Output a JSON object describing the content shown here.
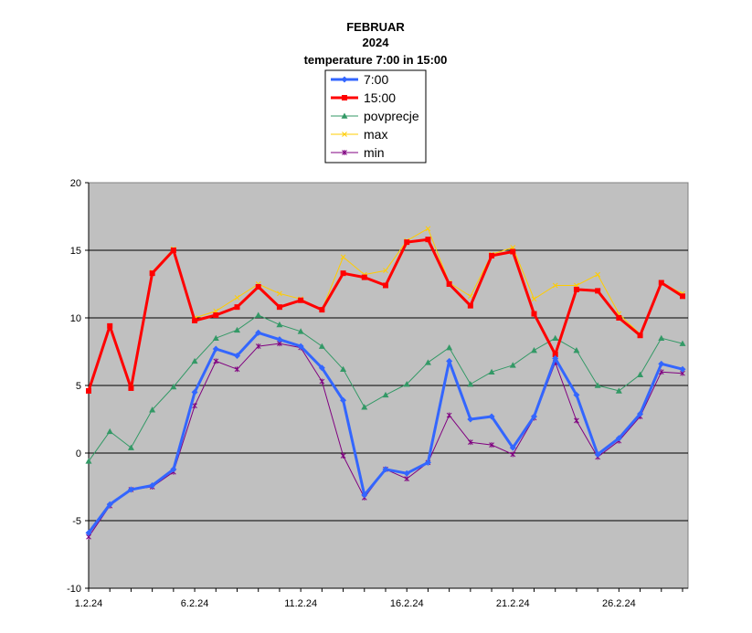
{
  "chart_data": {
    "type": "line",
    "title": [
      "FEBRUAR",
      "2024",
      "temperature 7:00 in 15:00"
    ],
    "ylim": [
      -10,
      20
    ],
    "y_ticks": [
      20,
      15,
      10,
      5,
      0,
      -5,
      -10
    ],
    "x_tick_labels": [
      {
        "day": 1,
        "label": "1.2.24"
      },
      {
        "day": 6,
        "label": "6.2.24"
      },
      {
        "day": 11,
        "label": "11.2.24"
      },
      {
        "day": 16,
        "label": "16.2.24"
      },
      {
        "day": 21,
        "label": "21.2.24"
      },
      {
        "day": 26,
        "label": "26.2.24"
      }
    ],
    "days": [
      1,
      2,
      3,
      4,
      5,
      6,
      7,
      8,
      9,
      10,
      11,
      12,
      13,
      14,
      15,
      16,
      17,
      18,
      19,
      20,
      21,
      22,
      23,
      24,
      25,
      26,
      27,
      28,
      29
    ],
    "grid": "horizontal",
    "background": "#c0c0c0",
    "legend_position": "top-center",
    "series": [
      {
        "name": "7:00",
        "color": "#3366ff",
        "values": [
          -5.9,
          -3.8,
          -2.7,
          -2.4,
          -1.2,
          4.5,
          7.7,
          7.2,
          8.9,
          8.4,
          7.9,
          6.3,
          3.9,
          -3.1,
          -1.2,
          -1.5,
          -0.7,
          6.8,
          2.5,
          2.7,
          0.4,
          2.7,
          7.0,
          4.3,
          -0.1,
          1.1,
          2.9,
          6.6,
          6.2
        ]
      },
      {
        "name": "15:00",
        "color": "#ff0000",
        "values": [
          4.6,
          9.4,
          4.8,
          13.3,
          15.0,
          9.8,
          10.2,
          10.8,
          12.3,
          10.8,
          11.3,
          10.6,
          13.3,
          13.0,
          12.4,
          15.6,
          15.8,
          12.5,
          10.9,
          14.6,
          14.9,
          10.3,
          7.3,
          12.1,
          12.0,
          10.0,
          8.7,
          12.6,
          11.6
        ]
      },
      {
        "name": "povprecje",
        "color": "#339966",
        "values": [
          -0.6,
          1.6,
          0.4,
          3.2,
          4.9,
          6.8,
          8.5,
          9.1,
          10.2,
          9.5,
          9.0,
          7.9,
          6.2,
          3.4,
          4.3,
          5.1,
          6.7,
          7.8,
          5.1,
          6.0,
          6.5,
          7.6,
          8.5,
          7.6,
          5.0,
          4.6,
          5.8,
          8.5,
          8.1
        ]
      },
      {
        "name": "max",
        "color": "#ffcc00",
        "values": [
          4.6,
          9.4,
          4.9,
          13.4,
          15.1,
          10.0,
          10.5,
          11.5,
          12.5,
          11.8,
          11.4,
          10.6,
          14.5,
          13.2,
          13.5,
          15.7,
          16.6,
          12.6,
          11.6,
          14.7,
          15.2,
          11.4,
          12.4,
          12.4,
          13.2,
          10.3,
          8.8,
          12.6,
          11.8
        ]
      },
      {
        "name": "min",
        "color": "#800080",
        "values": [
          -6.2,
          -3.9,
          -2.7,
          -2.5,
          -1.4,
          3.5,
          6.8,
          6.2,
          7.9,
          8.1,
          7.8,
          5.3,
          -0.2,
          -3.3,
          -1.2,
          -1.9,
          -0.7,
          2.8,
          0.8,
          0.6,
          -0.1,
          2.6,
          6.7,
          2.4,
          -0.3,
          0.9,
          2.7,
          6.0,
          5.9
        ]
      }
    ]
  }
}
